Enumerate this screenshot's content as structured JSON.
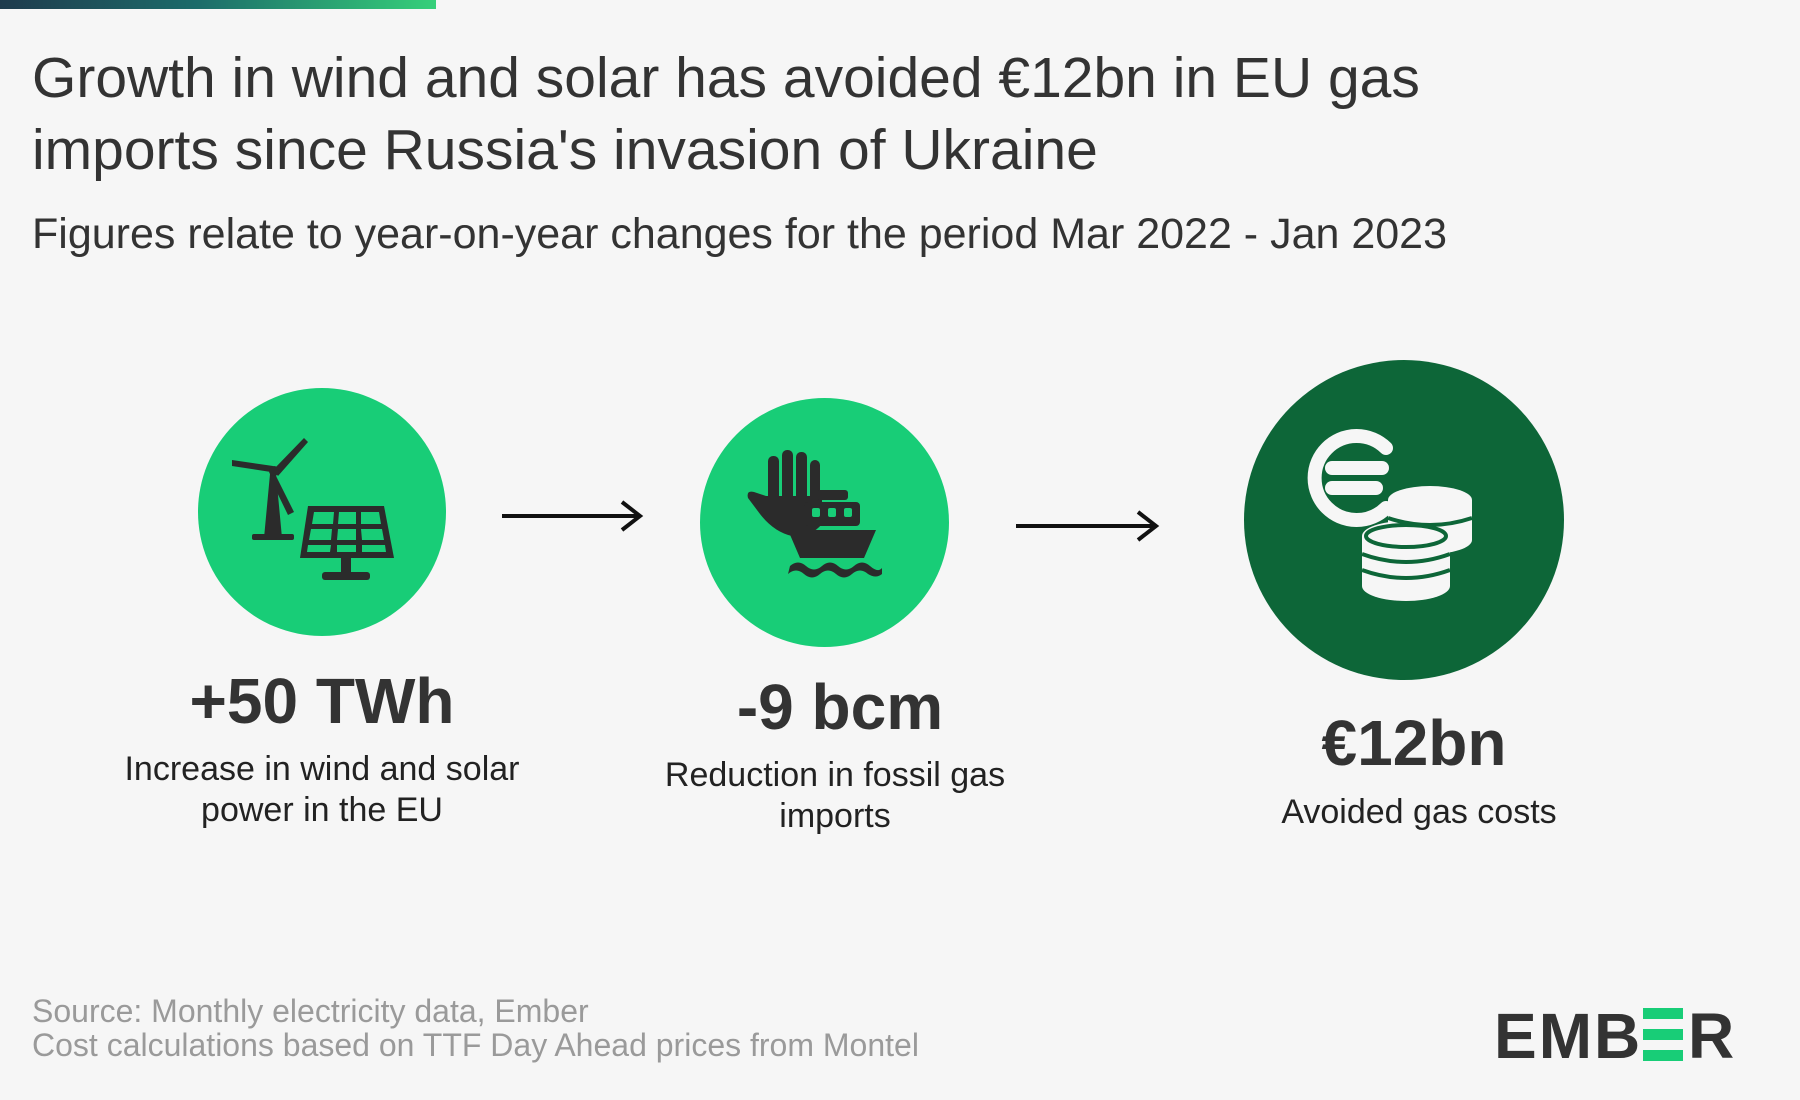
{
  "header": {
    "title": "Growth in wind and solar has avoided €12bn in EU gas imports since Russia's invasion of Ukraine",
    "subtitle": "Figures relate to year-on-year changes for the period Mar 2022 - Jan 2023"
  },
  "steps": [
    {
      "icon": "wind-solar-icon",
      "value": "+50 TWh",
      "description": "Increase in wind and solar power in the EU"
    },
    {
      "icon": "stop-gas-ship-icon",
      "value": "-9 bcm",
      "description": "Reduction in fossil gas imports"
    },
    {
      "icon": "euro-coins-icon",
      "value": "€12bn",
      "description": "Avoided gas costs"
    }
  ],
  "arrows": [
    "arrow-right-icon",
    "arrow-right-icon"
  ],
  "footer": {
    "source_line1": "Source: Monthly electricity data, Ember",
    "source_line2": "Cost calculations based on TTF Day Ahead prices from Montel",
    "logo": "EMBER"
  },
  "colors": {
    "accent_green": "#18cd77",
    "dark_green": "#0d6638",
    "text": "#333333",
    "muted_text": "#9a9a9a"
  }
}
